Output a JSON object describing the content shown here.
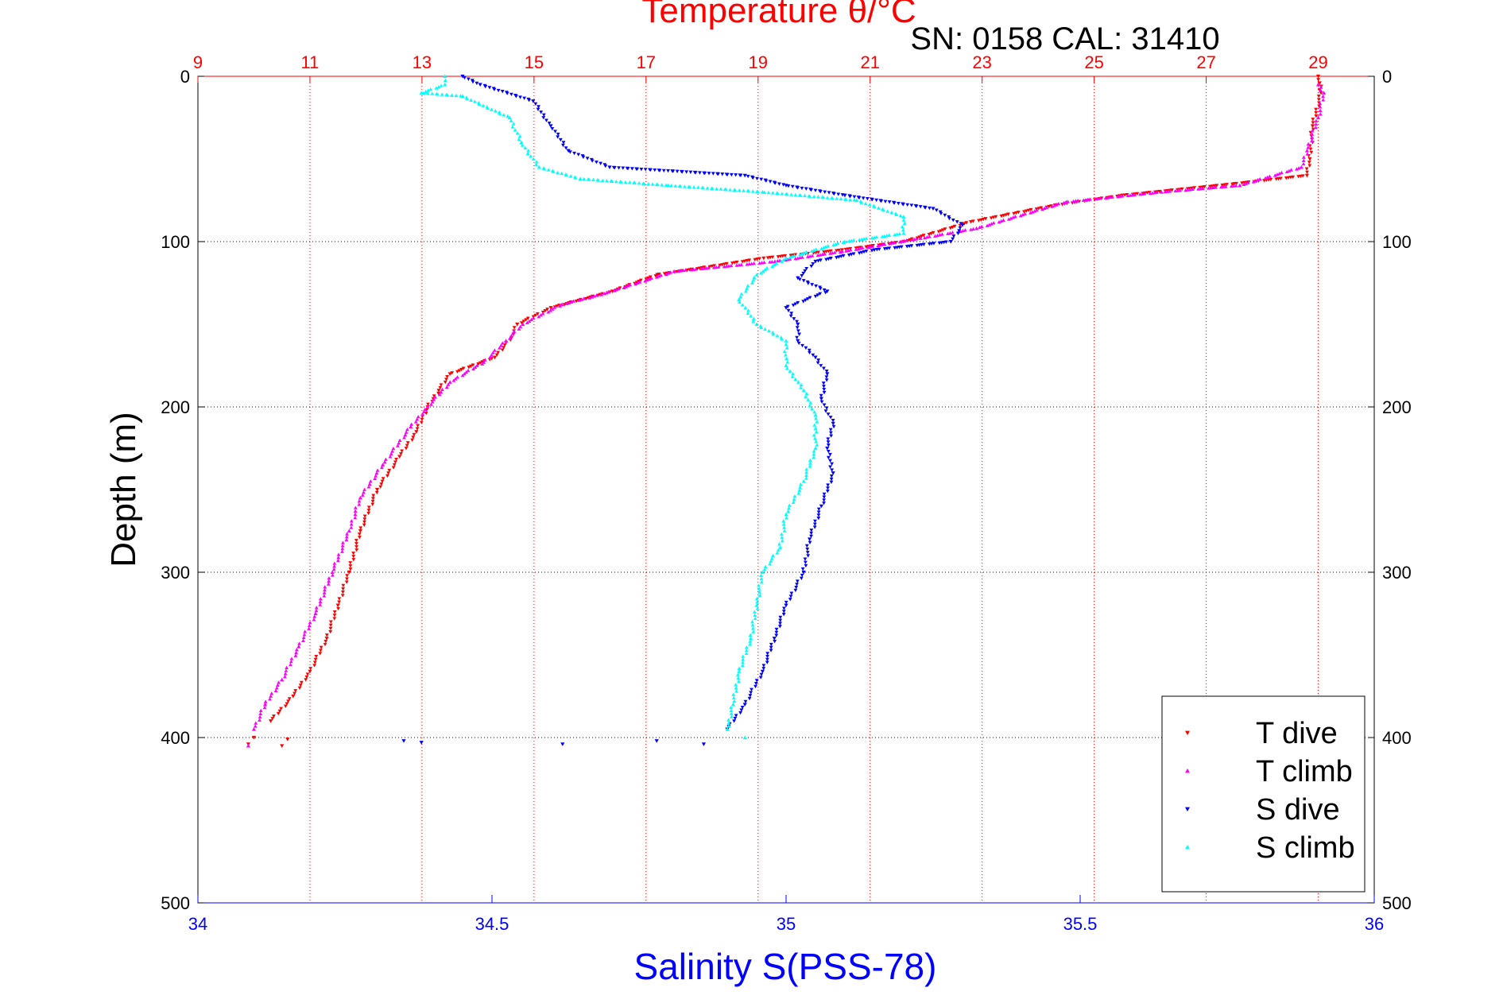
{
  "chart_data": {
    "type": "scatter",
    "title": "Temperature θ/°C",
    "annotation": "SN: 0158  CAL: 31410",
    "ylabel": "Depth (m)",
    "xlabel": "Salinity S(PSS-78)",
    "y_axis": {
      "range": [
        0,
        500
      ],
      "reversed": true,
      "ticks": [
        "0",
        "100",
        "200",
        "300",
        "400",
        "500"
      ],
      "tick_values": [
        0,
        100,
        200,
        300,
        400,
        500
      ]
    },
    "x_axis_bottom": {
      "range": [
        34,
        36
      ],
      "ticks": [
        "34",
        "34.5",
        "35",
        "35.5",
        "36"
      ],
      "tick_values": [
        34,
        34.5,
        35,
        35.5,
        36
      ],
      "color": "#0000ff"
    },
    "x_axis_top": {
      "range": [
        9,
        30
      ],
      "ticks": [
        "9",
        "11",
        "13",
        "15",
        "17",
        "19",
        "21",
        "23",
        "25",
        "27",
        "29"
      ],
      "tick_values": [
        9,
        11,
        13,
        15,
        17,
        19,
        21,
        23,
        25,
        27,
        29
      ],
      "color": "#ff0000"
    },
    "grid": true,
    "legend_position": "bottom-right",
    "series": [
      {
        "name": "T dive",
        "axis": "temperature",
        "color": "#ff0000",
        "marker": "triangle-down",
        "points": [
          [
            29,
            0
          ],
          [
            29.05,
            10
          ],
          [
            28.9,
            30
          ],
          [
            28.85,
            50
          ],
          [
            28.8,
            60
          ],
          [
            27.5,
            65
          ],
          [
            25.5,
            72
          ],
          [
            24.3,
            78
          ],
          [
            22.8,
            88
          ],
          [
            21.6,
            100
          ],
          [
            20.5,
            105
          ],
          [
            19.1,
            110
          ],
          [
            17.2,
            120
          ],
          [
            16.4,
            130
          ],
          [
            15.3,
            140
          ],
          [
            14.7,
            150
          ],
          [
            14.6,
            158
          ],
          [
            14.3,
            170
          ],
          [
            13.5,
            180
          ],
          [
            13.3,
            190
          ],
          [
            13.1,
            200
          ],
          [
            12.9,
            215
          ],
          [
            12.6,
            230
          ],
          [
            12.2,
            250
          ],
          [
            11.9,
            275
          ],
          [
            11.7,
            300
          ],
          [
            11.5,
            320
          ],
          [
            11.3,
            340
          ],
          [
            11.0,
            360
          ],
          [
            10.7,
            375
          ],
          [
            10.3,
            390
          ],
          [
            10.0,
            400
          ],
          [
            9.9,
            404
          ],
          [
            10.6,
            401
          ],
          [
            10.5,
            405
          ]
        ]
      },
      {
        "name": "T climb",
        "axis": "temperature",
        "color": "#ff00ff",
        "marker": "triangle-up",
        "points": [
          [
            29,
            5
          ],
          [
            29.1,
            10
          ],
          [
            29,
            25
          ],
          [
            28.8,
            45
          ],
          [
            28.7,
            55
          ],
          [
            27.6,
            66
          ],
          [
            26.2,
            70
          ],
          [
            24.5,
            76
          ],
          [
            22.9,
            92
          ],
          [
            21.9,
            98
          ],
          [
            20.5,
            106
          ],
          [
            19.3,
            112
          ],
          [
            17.5,
            118
          ],
          [
            16.2,
            132
          ],
          [
            15.5,
            138
          ],
          [
            14.8,
            150
          ],
          [
            14.5,
            160
          ],
          [
            14.1,
            173
          ],
          [
            13.5,
            185
          ],
          [
            13.1,
            200
          ],
          [
            12.8,
            212
          ],
          [
            12.3,
            235
          ],
          [
            11.9,
            255
          ],
          [
            11.7,
            275
          ],
          [
            11.4,
            300
          ],
          [
            11.1,
            325
          ],
          [
            10.8,
            345
          ],
          [
            10.5,
            365
          ],
          [
            10.2,
            380
          ],
          [
            10.0,
            395
          ],
          [
            9.9,
            405
          ]
        ]
      },
      {
        "name": "S dive",
        "axis": "salinity",
        "color": "#0000ff",
        "marker": "triangle-down",
        "points": [
          [
            34.45,
            0
          ],
          [
            34.48,
            5
          ],
          [
            34.57,
            15
          ],
          [
            34.6,
            30
          ],
          [
            34.63,
            45
          ],
          [
            34.7,
            55
          ],
          [
            34.93,
            60
          ],
          [
            35.0,
            66
          ],
          [
            35.1,
            72
          ],
          [
            35.25,
            80
          ],
          [
            35.3,
            90
          ],
          [
            35.28,
            100
          ],
          [
            35.15,
            105
          ],
          [
            35.05,
            112
          ],
          [
            35.02,
            122
          ],
          [
            35.07,
            130
          ],
          [
            35.0,
            140
          ],
          [
            35.02,
            150
          ],
          [
            35.02,
            160
          ],
          [
            35.05,
            170
          ],
          [
            35.07,
            180
          ],
          [
            35.06,
            195
          ],
          [
            35.08,
            210
          ],
          [
            35.07,
            225
          ],
          [
            35.08,
            240
          ],
          [
            35.06,
            260
          ],
          [
            35.04,
            280
          ],
          [
            35.03,
            300
          ],
          [
            35.0,
            320
          ],
          [
            34.98,
            340
          ],
          [
            34.96,
            360
          ],
          [
            34.93,
            380
          ],
          [
            34.9,
            395
          ],
          [
            34.35,
            402
          ],
          [
            34.38,
            403
          ],
          [
            34.62,
            404
          ],
          [
            34.78,
            402
          ],
          [
            34.86,
            404
          ]
        ]
      },
      {
        "name": "S climb",
        "axis": "salinity",
        "color": "#00ffff",
        "marker": "triangle-up",
        "points": [
          [
            34.42,
            0
          ],
          [
            34.42,
            5
          ],
          [
            34.38,
            10
          ],
          [
            34.45,
            12
          ],
          [
            34.53,
            25
          ],
          [
            34.55,
            40
          ],
          [
            34.58,
            55
          ],
          [
            34.65,
            62
          ],
          [
            34.8,
            66
          ],
          [
            34.96,
            70
          ],
          [
            35.12,
            75
          ],
          [
            35.2,
            85
          ],
          [
            35.2,
            95
          ],
          [
            35.1,
            100
          ],
          [
            35.0,
            110
          ],
          [
            34.95,
            120
          ],
          [
            34.92,
            135
          ],
          [
            34.95,
            150
          ],
          [
            35.0,
            160
          ],
          [
            35.0,
            175
          ],
          [
            35.03,
            190
          ],
          [
            35.05,
            205
          ],
          [
            35.05,
            225
          ],
          [
            35.03,
            245
          ],
          [
            35.0,
            265
          ],
          [
            34.99,
            285
          ],
          [
            34.96,
            300
          ],
          [
            34.95,
            320
          ],
          [
            34.94,
            340
          ],
          [
            34.92,
            360
          ],
          [
            34.91,
            380
          ],
          [
            34.9,
            395
          ],
          [
            34.93,
            400
          ]
        ]
      }
    ]
  }
}
